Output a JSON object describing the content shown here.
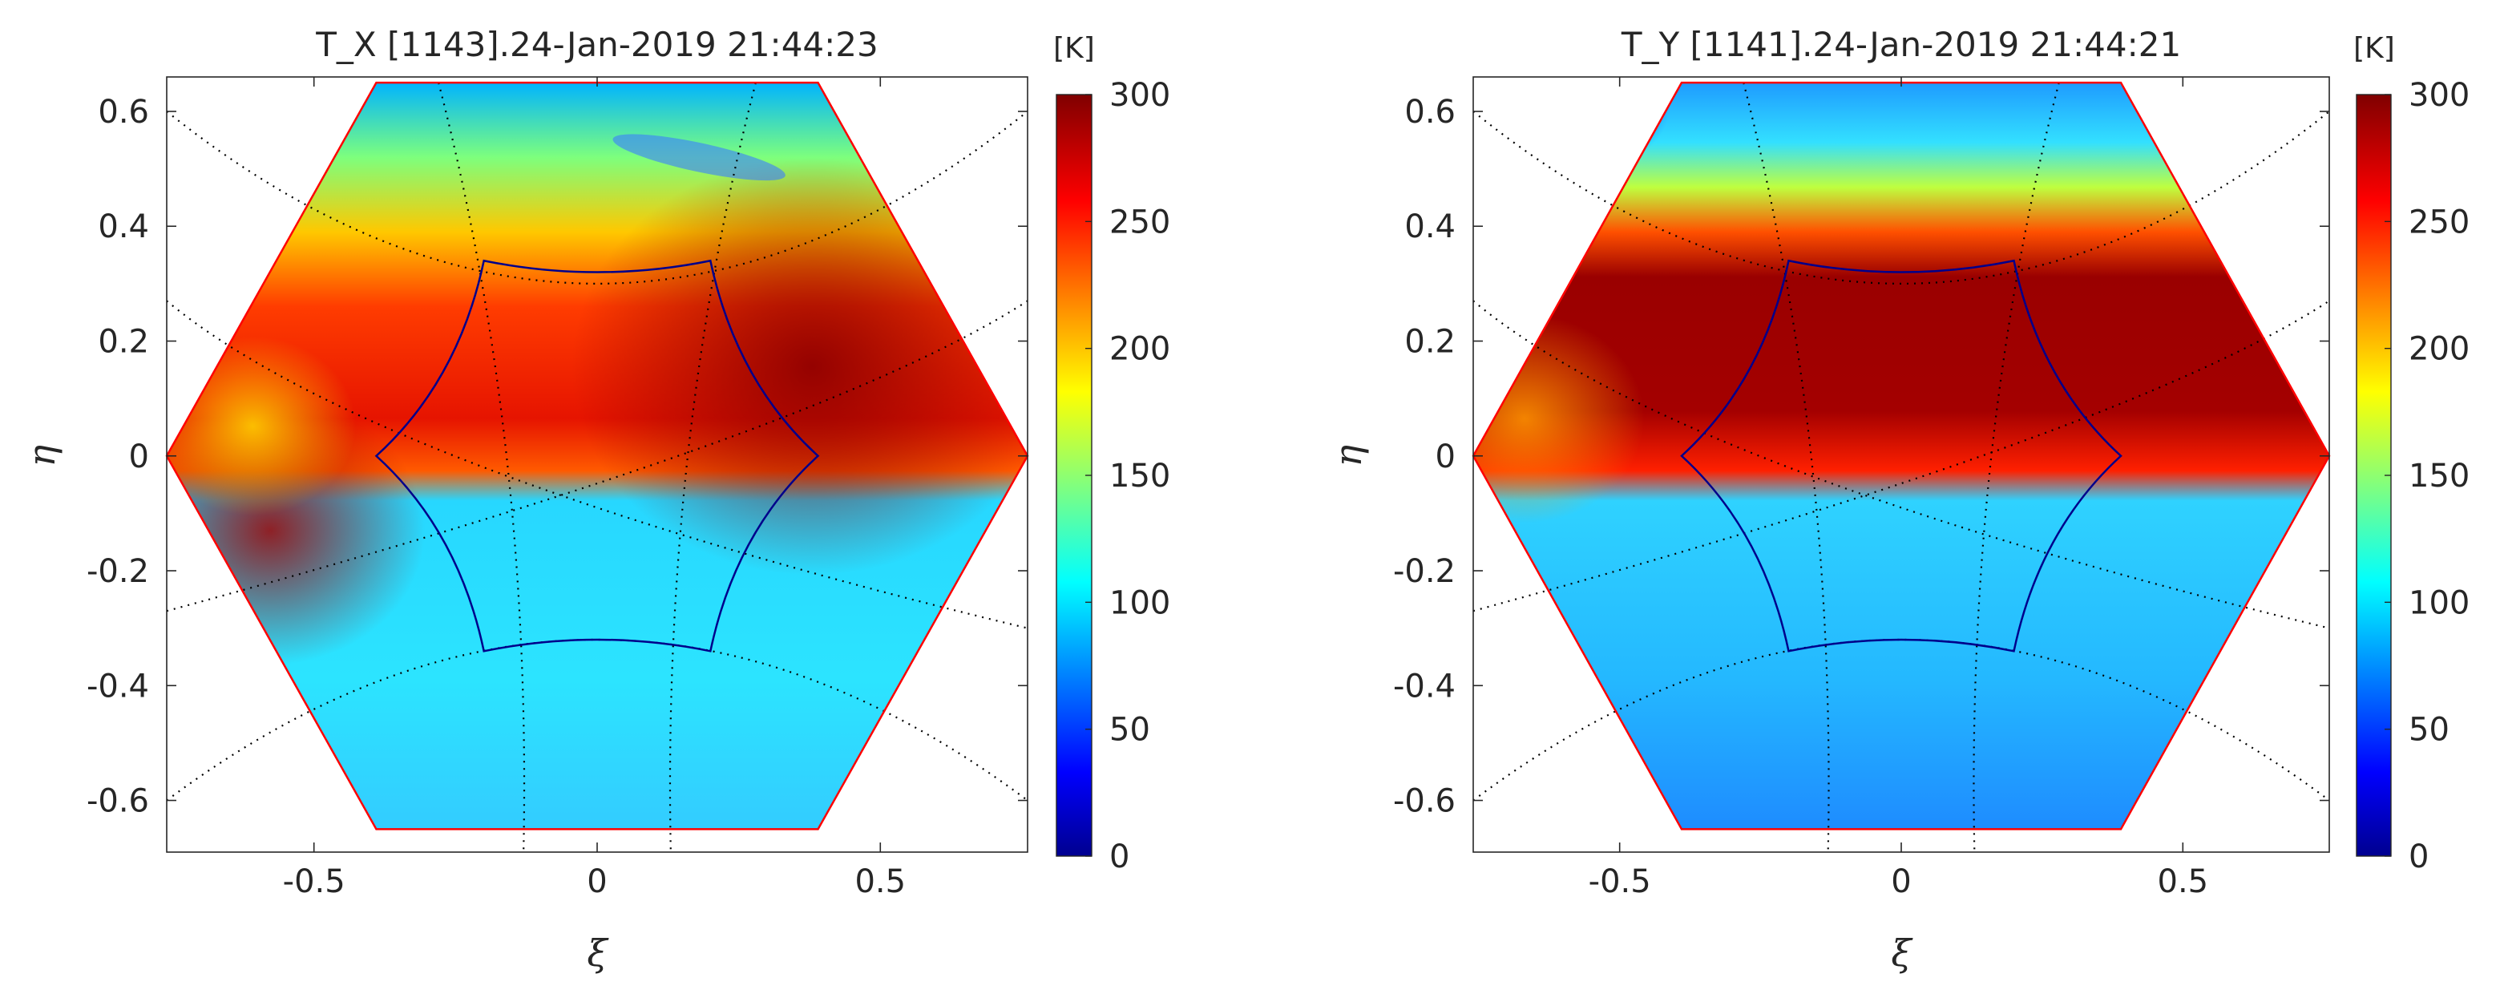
{
  "figure": {
    "colors": {
      "hex_outline": "#ff0000",
      "inner_outline": "#00008b",
      "grid_lines": "#000000",
      "axes": "#262626",
      "background": "#ffffff"
    },
    "colormap": "jet"
  },
  "chart_data": [
    {
      "type": "heatmap",
      "title": "T_X [1143].24-Jan-2019 21:44:23",
      "xlabel": "ξ",
      "ylabel": "η",
      "xlim": [
        -0.76,
        0.76
      ],
      "ylim": [
        -0.69,
        0.66
      ],
      "xticks": [
        -0.5,
        0,
        0.5
      ],
      "xtick_labels": [
        "-0.5",
        "0",
        "0.5"
      ],
      "yticks": [
        0.6,
        0.4,
        0.2,
        0,
        -0.2,
        -0.4,
        -0.6
      ],
      "ytick_labels": [
        "0.6",
        "0.4",
        "0.2",
        "0",
        "-0.2",
        "-0.4",
        "-0.6"
      ],
      "colorbar": {
        "label": "[K]",
        "range": [
          0,
          300
        ],
        "ticks": [
          300,
          250,
          200,
          150,
          100,
          50,
          0
        ],
        "tick_labels": [
          "300",
          "250",
          "200",
          "150",
          "100",
          "50",
          "0"
        ]
      },
      "field": {
        "boundary_eta": 0.0,
        "temperature_above_K": 262,
        "temperature_below_K": 110,
        "edge_temperature_K": 130,
        "hot_core_K": 285
      },
      "hexagon_vertices": [
        [
          -0.39,
          0.65
        ],
        [
          0.39,
          0.65
        ],
        [
          0.76,
          0.0
        ],
        [
          0.39,
          -0.65
        ],
        [
          -0.39,
          -0.65
        ],
        [
          -0.76,
          0.0
        ]
      ]
    },
    {
      "type": "heatmap",
      "title": "T_Y [1141].24-Jan-2019 21:44:21",
      "xlabel": "ξ",
      "ylabel": "η",
      "xlim": [
        -0.76,
        0.76
      ],
      "ylim": [
        -0.69,
        0.66
      ],
      "xticks": [
        -0.5,
        0,
        0.5
      ],
      "xtick_labels": [
        "-0.5",
        "0",
        "0.5"
      ],
      "yticks": [
        0.6,
        0.4,
        0.2,
        0,
        -0.2,
        -0.4,
        -0.6
      ],
      "ytick_labels": [
        "0.6",
        "0.4",
        "0.2",
        "0",
        "-0.2",
        "-0.4",
        "-0.6"
      ],
      "colorbar": {
        "label": "[K]",
        "range": [
          0,
          300
        ],
        "ticks": [
          300,
          250,
          200,
          150,
          100,
          50,
          0
        ],
        "tick_labels": [
          "300",
          "250",
          "200",
          "150",
          "100",
          "50",
          "0"
        ]
      },
      "field": {
        "boundary_eta": 0.02,
        "temperature_above_K": 285,
        "temperature_below_K": 100,
        "edge_temperature_K": 120,
        "hot_core_K": 298
      },
      "hexagon_vertices": [
        [
          -0.39,
          0.65
        ],
        [
          0.39,
          0.65
        ],
        [
          0.76,
          0.0
        ],
        [
          0.39,
          -0.65
        ],
        [
          -0.39,
          -0.65
        ],
        [
          -0.76,
          0.0
        ]
      ]
    }
  ]
}
